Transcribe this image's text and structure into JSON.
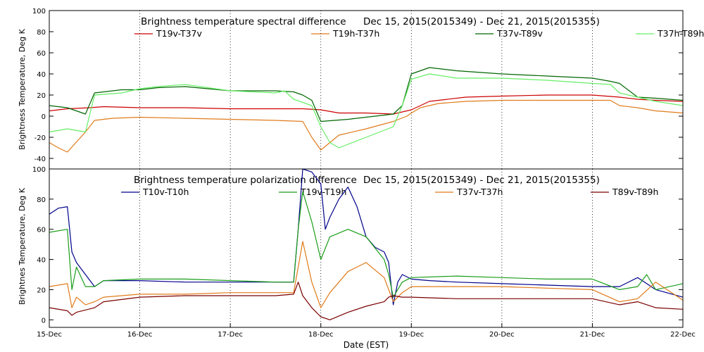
{
  "chart_data": [
    {
      "type": "line",
      "title": "Brightness temperature spectral difference",
      "date_range": "Dec 15, 2015(2015349) - Dec 21, 2015(2015355)",
      "ylabel": "Brightness Temperature, Deg K",
      "xlabel": "",
      "ylim": [
        -50,
        100
      ],
      "yticks": [
        -40,
        -20,
        0,
        20,
        40,
        60,
        80,
        100
      ],
      "xlim": [
        0,
        7
      ],
      "grid": "vertical dotted lines at each day",
      "legend_position": "top",
      "series": [
        {
          "name": "T19v-T37v",
          "color": "#cc0000",
          "x": [
            0,
            0.2,
            0.45,
            0.6,
            1.0,
            1.5,
            2.0,
            2.5,
            2.8,
            3.0,
            3.2,
            3.5,
            3.8,
            4.0,
            4.2,
            4.6,
            5.0,
            5.5,
            6.0,
            6.3,
            6.5,
            6.7,
            7.0
          ],
          "y": [
            5,
            7,
            8,
            9,
            8,
            8,
            7,
            7,
            7,
            6,
            3,
            3,
            2,
            6,
            14,
            18,
            19,
            20,
            20,
            18,
            16,
            15,
            14
          ]
        },
        {
          "name": "T19h-T37h",
          "color": "#e07b1a",
          "x": [
            0,
            0.1,
            0.2,
            0.4,
            0.5,
            0.7,
            1.0,
            1.5,
            2.0,
            2.5,
            2.8,
            2.9,
            3.0,
            3.1,
            3.2,
            3.5,
            3.8,
            3.95,
            4.0,
            4.1,
            4.3,
            4.6,
            5.0,
            5.5,
            6.0,
            6.2,
            6.3,
            6.5,
            6.7,
            7.0
          ],
          "y": [
            -25,
            -30,
            -34,
            -15,
            -4,
            -2,
            -1,
            -2,
            -3,
            -4,
            -5,
            -20,
            -32,
            -25,
            -18,
            -12,
            -5,
            0,
            3,
            8,
            12,
            14,
            15,
            15,
            15,
            15,
            10,
            8,
            5,
            3
          ]
        },
        {
          "name": "T37v-T89v",
          "color": "#006600",
          "x": [
            0,
            0.2,
            0.4,
            0.5,
            0.8,
            1.0,
            1.2,
            1.5,
            2.0,
            2.5,
            2.7,
            2.8,
            2.9,
            3.0,
            3.3,
            3.6,
            3.8,
            3.9,
            4.0,
            4.2,
            4.5,
            5.0,
            5.5,
            6.0,
            6.2,
            6.3,
            6.5,
            6.7,
            7.0
          ],
          "y": [
            10,
            8,
            2,
            22,
            25,
            25,
            27,
            28,
            24,
            24,
            23,
            20,
            15,
            -5,
            -3,
            0,
            2,
            10,
            40,
            46,
            43,
            40,
            38,
            36,
            33,
            31,
            18,
            17,
            15
          ]
        },
        {
          "name": "T37h-T89h",
          "color": "#66ee66",
          "x": [
            0,
            0.2,
            0.4,
            0.5,
            0.8,
            1.0,
            1.2,
            1.5,
            2.0,
            2.5,
            2.6,
            2.7,
            2.9,
            3.0,
            3.1,
            3.2,
            3.5,
            3.8,
            3.9,
            4.0,
            4.2,
            4.5,
            5.0,
            5.5,
            6.0,
            6.2,
            6.3,
            6.5,
            6.7,
            7.0
          ],
          "y": [
            -15,
            -12,
            -15,
            20,
            22,
            26,
            28,
            30,
            24,
            22,
            24,
            16,
            10,
            -10,
            -25,
            -30,
            -20,
            -10,
            10,
            35,
            40,
            36,
            36,
            34,
            31,
            30,
            22,
            18,
            14,
            10
          ]
        }
      ]
    },
    {
      "type": "line",
      "title": "Brightness temperature polarization difference",
      "date_range": "Dec 15, 2015(2015349) - Dec 21, 2015(2015355)",
      "ylabel": "Brightnes Temperature, Deg K",
      "xlabel": "Date (EST)",
      "ylim": [
        -5,
        100
      ],
      "yticks": [
        0,
        20,
        40,
        60,
        80,
        100
      ],
      "xlim": [
        0,
        7
      ],
      "xticks": [
        "15-Dec",
        "16-Dec",
        "17-Dec",
        "18-Dec",
        "19-Dec",
        "20-Dec",
        "21-Dec",
        "22-Dec"
      ],
      "grid": "vertical dotted lines at each day",
      "legend_position": "top",
      "series": [
        {
          "name": "T10v-T10h",
          "color": "#00008b",
          "x": [
            0,
            0.1,
            0.2,
            0.25,
            0.3,
            0.4,
            0.5,
            0.6,
            1.0,
            1.5,
            2.0,
            2.5,
            2.7,
            2.75,
            2.8,
            2.9,
            3.0,
            3.05,
            3.1,
            3.2,
            3.3,
            3.4,
            3.5,
            3.6,
            3.7,
            3.75,
            3.8,
            3.85,
            3.9,
            4.0,
            4.2,
            4.5,
            5.0,
            5.5,
            6.0,
            6.3,
            6.5,
            6.7,
            7.0
          ],
          "y": [
            70,
            74,
            75,
            45,
            38,
            30,
            22,
            26,
            26,
            25,
            25,
            25,
            25,
            60,
            100,
            98,
            90,
            60,
            68,
            80,
            88,
            75,
            55,
            48,
            45,
            38,
            10,
            25,
            30,
            27,
            26,
            25,
            24,
            23,
            22,
            22,
            28,
            20,
            15
          ]
        },
        {
          "name": "T19v-T19h",
          "color": "#1a9e1a",
          "x": [
            0,
            0.2,
            0.25,
            0.3,
            0.4,
            0.5,
            0.6,
            1.0,
            1.5,
            2.0,
            2.5,
            2.7,
            2.75,
            2.8,
            2.9,
            3.0,
            3.1,
            3.3,
            3.5,
            3.7,
            3.75,
            3.8,
            3.9,
            4.0,
            4.5,
            5.0,
            5.5,
            6.0,
            6.3,
            6.5,
            6.6,
            6.7,
            7.0
          ],
          "y": [
            58,
            60,
            20,
            35,
            22,
            22,
            26,
            27,
            27,
            26,
            25,
            25,
            60,
            85,
            65,
            40,
            55,
            60,
            55,
            40,
            30,
            15,
            25,
            28,
            29,
            28,
            27,
            27,
            20,
            22,
            30,
            20,
            24
          ]
        },
        {
          "name": "T37v-T37h",
          "color": "#e07b1a",
          "x": [
            0,
            0.2,
            0.25,
            0.3,
            0.4,
            0.5,
            0.6,
            1.0,
            1.5,
            2.0,
            2.5,
            2.7,
            2.75,
            2.8,
            2.9,
            3.0,
            3.1,
            3.3,
            3.5,
            3.7,
            3.75,
            3.8,
            3.9,
            4.0,
            4.5,
            5.0,
            5.5,
            6.0,
            6.3,
            6.5,
            6.7,
            7.0
          ],
          "y": [
            22,
            24,
            8,
            15,
            10,
            12,
            15,
            17,
            17,
            18,
            18,
            18,
            35,
            52,
            25,
            8,
            18,
            32,
            38,
            28,
            20,
            12,
            18,
            22,
            22,
            22,
            21,
            20,
            12,
            14,
            25,
            13
          ]
        },
        {
          "name": "T89v-T89h",
          "color": "#7a0000",
          "x": [
            0,
            0.2,
            0.25,
            0.3,
            0.5,
            0.6,
            1.0,
            1.5,
            2.0,
            2.5,
            2.7,
            2.75,
            2.8,
            2.9,
            3.0,
            3.1,
            3.3,
            3.5,
            3.7,
            3.75,
            3.8,
            3.9,
            4.0,
            4.5,
            5.0,
            5.5,
            6.0,
            6.3,
            6.5,
            6.7,
            7.0
          ],
          "y": [
            8,
            6,
            3,
            5,
            8,
            12,
            15,
            16,
            16,
            16,
            17,
            25,
            16,
            8,
            2,
            0,
            5,
            9,
            12,
            15,
            16,
            15,
            15,
            14,
            14,
            14,
            14,
            10,
            12,
            8,
            7
          ]
        }
      ]
    }
  ]
}
